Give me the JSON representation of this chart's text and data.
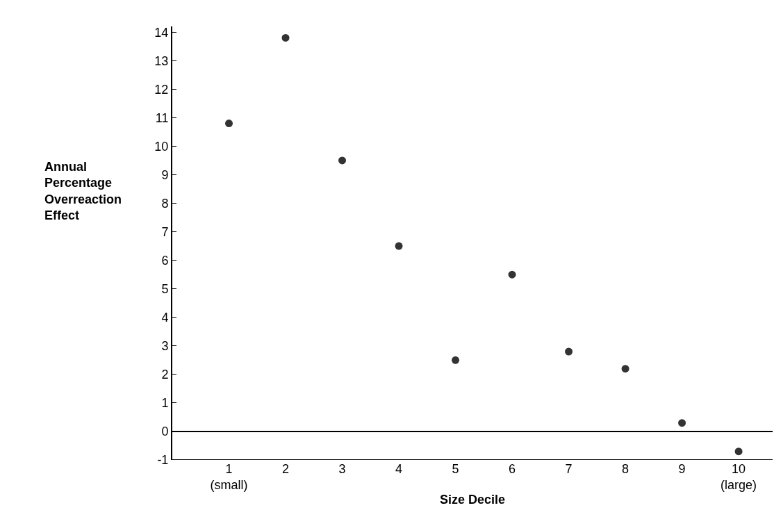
{
  "chart_data": {
    "type": "scatter",
    "xlabel": "Size Decile",
    "ylabel": "Annual\nPercentage\nOverreaction\nEffect",
    "x": [
      1,
      2,
      3,
      4,
      5,
      6,
      7,
      8,
      9,
      10
    ],
    "values": [
      10.8,
      13.8,
      9.5,
      6.5,
      2.5,
      5.5,
      2.8,
      2.2,
      0.3,
      -0.7
    ],
    "color": "#333333",
    "marker": "circle",
    "grid": false,
    "xlim": [
      0,
      10.6
    ],
    "ylim": [
      -1,
      14.2
    ],
    "xticks": [
      {
        "value": 1,
        "label": "1\n(small)"
      },
      2,
      3,
      4,
      5,
      6,
      7,
      8,
      9,
      {
        "value": 10,
        "label": "10\n(large)"
      }
    ],
    "yticks": [
      -1,
      0,
      1,
      2,
      3,
      4,
      5,
      6,
      7,
      8,
      9,
      10,
      11,
      12,
      13,
      14
    ],
    "ref_lines": [
      {
        "axis": "y",
        "value": 0,
        "label": null,
        "color": "#000000"
      }
    ]
  }
}
